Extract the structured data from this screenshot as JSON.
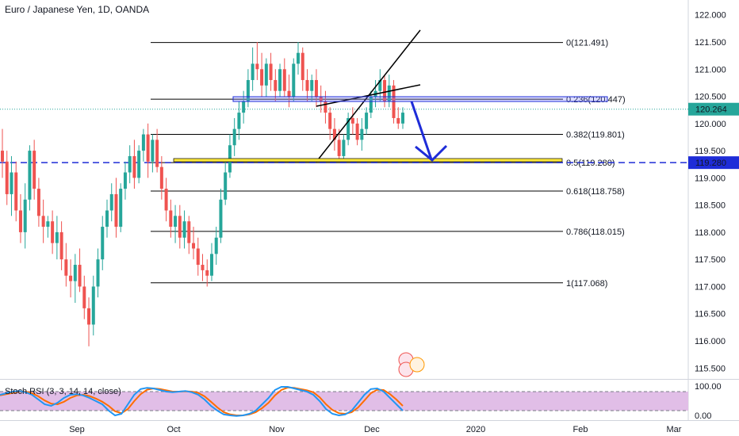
{
  "header": {
    "title": "Euro / Japanese Yen, 1D, OANDA"
  },
  "indicator": {
    "label": "Stoch RSI (3, 3, 14, 14, close)"
  },
  "colors": {
    "up": "#26a69a",
    "down": "#ef5350",
    "fib": "#000000",
    "level_line": "#1e2cd8",
    "current_price": "#26a69a",
    "stoch_k": "#2196f3",
    "stoch_d": "#ff6d00",
    "stoch_band": "#e1bee7"
  },
  "chart_data": {
    "type": "candlestick",
    "symbol": "EUR/JPY",
    "interval": "1D",
    "ylim": [
      115.3,
      122.2
    ],
    "y_ticks": [
      "122.000",
      "121.500",
      "121.000",
      "120.500",
      "120.000",
      "119.500",
      "119.000",
      "118.500",
      "118.000",
      "117.500",
      "117.000",
      "116.500",
      "116.000",
      "115.500"
    ],
    "x_ticks": [
      "Sep",
      "Oct",
      "Nov",
      "Dec",
      "2020",
      "Feb",
      "Mar"
    ],
    "fib_levels": [
      {
        "ratio": "0",
        "price": 121.491,
        "label": "0(121.491)"
      },
      {
        "ratio": "0.236",
        "price": 120.447,
        "label": "0.236(120.447)"
      },
      {
        "ratio": "0.382",
        "price": 119.801,
        "label": "0.382(119.801)"
      },
      {
        "ratio": "0.5",
        "price": 119.28,
        "label": "0.5(119.280)"
      },
      {
        "ratio": "0.618",
        "price": 118.758,
        "label": "0.618(118.758)"
      },
      {
        "ratio": "0.786",
        "price": 118.015,
        "label": "0.786(118.015)"
      },
      {
        "ratio": "1",
        "price": 117.068,
        "label": "1(117.068)"
      }
    ],
    "current_price": {
      "value": 120.264,
      "label": "120.264"
    },
    "horizontal_level": {
      "value": 119.28,
      "label": "119.280"
    },
    "candles": [
      [
        119.5,
        119.9,
        119.0,
        119.3
      ],
      [
        119.3,
        119.5,
        118.5,
        118.7
      ],
      [
        118.7,
        119.4,
        118.3,
        119.1
      ],
      [
        119.1,
        119.3,
        118.2,
        118.4
      ],
      [
        118.4,
        118.7,
        117.8,
        118.0
      ],
      [
        118.0,
        118.9,
        117.7,
        118.6
      ],
      [
        118.6,
        119.6,
        118.4,
        119.5
      ],
      [
        119.5,
        119.7,
        118.6,
        118.8
      ],
      [
        118.8,
        119.0,
        118.1,
        118.3
      ],
      [
        118.3,
        118.6,
        117.8,
        118.1
      ],
      [
        118.1,
        118.3,
        117.9,
        118.2
      ],
      [
        118.2,
        118.4,
        117.6,
        117.8
      ],
      [
        117.8,
        118.3,
        117.5,
        118.0
      ],
      [
        118.0,
        118.2,
        117.3,
        117.5
      ],
      [
        117.5,
        117.8,
        117.0,
        117.2
      ],
      [
        117.2,
        117.5,
        116.8,
        117.1
      ],
      [
        117.1,
        117.6,
        116.7,
        117.4
      ],
      [
        117.4,
        117.7,
        116.9,
        117.0
      ],
      [
        117.0,
        117.2,
        116.4,
        116.6
      ],
      [
        116.6,
        116.8,
        115.9,
        116.3
      ],
      [
        116.3,
        117.2,
        116.1,
        117.0
      ],
      [
        117.0,
        117.7,
        116.8,
        117.5
      ],
      [
        117.5,
        118.3,
        117.3,
        118.1
      ],
      [
        118.1,
        118.6,
        117.9,
        118.4
      ],
      [
        118.4,
        118.9,
        118.2,
        118.7
      ],
      [
        118.7,
        119.0,
        117.9,
        118.1
      ],
      [
        118.1,
        118.9,
        118.0,
        118.8
      ],
      [
        118.8,
        119.3,
        118.6,
        119.1
      ],
      [
        119.1,
        119.6,
        118.9,
        119.4
      ],
      [
        119.4,
        119.7,
        118.8,
        119.0
      ],
      [
        119.0,
        119.6,
        118.9,
        119.5
      ],
      [
        119.5,
        119.9,
        119.3,
        119.8
      ],
      [
        119.8,
        120.0,
        119.0,
        119.3
      ],
      [
        119.3,
        119.8,
        119.1,
        119.7
      ],
      [
        119.7,
        119.9,
        119.1,
        119.2
      ],
      [
        119.2,
        119.4,
        118.6,
        118.8
      ],
      [
        118.8,
        119.0,
        118.2,
        118.4
      ],
      [
        118.4,
        118.6,
        117.9,
        118.1
      ],
      [
        118.1,
        118.5,
        117.8,
        118.3
      ],
      [
        118.3,
        118.5,
        117.7,
        117.9
      ],
      [
        117.9,
        118.4,
        117.7,
        118.2
      ],
      [
        118.2,
        118.3,
        117.6,
        117.8
      ],
      [
        117.8,
        118.1,
        117.5,
        117.7
      ],
      [
        117.7,
        117.9,
        117.2,
        117.4
      ],
      [
        117.4,
        117.6,
        117.1,
        117.3
      ],
      [
        117.3,
        117.5,
        117.0,
        117.2
      ],
      [
        117.2,
        117.8,
        117.1,
        117.6
      ],
      [
        117.6,
        118.1,
        117.4,
        117.9
      ],
      [
        117.9,
        118.8,
        117.8,
        118.6
      ],
      [
        118.6,
        119.3,
        118.5,
        119.1
      ],
      [
        119.1,
        119.8,
        119.0,
        119.6
      ],
      [
        119.6,
        120.1,
        119.4,
        119.9
      ],
      [
        119.9,
        120.4,
        119.7,
        120.2
      ],
      [
        120.2,
        120.6,
        120.0,
        120.4
      ],
      [
        120.4,
        121.0,
        120.3,
        120.8
      ],
      [
        120.8,
        121.4,
        120.6,
        121.1
      ],
      [
        121.1,
        121.5,
        120.8,
        121.0
      ],
      [
        121.0,
        121.3,
        120.5,
        120.7
      ],
      [
        120.7,
        121.2,
        120.5,
        121.1
      ],
      [
        121.1,
        121.3,
        120.6,
        120.8
      ],
      [
        120.8,
        121.0,
        120.4,
        120.6
      ],
      [
        120.6,
        121.1,
        120.5,
        121.0
      ],
      [
        121.0,
        121.2,
        120.5,
        120.6
      ],
      [
        120.6,
        120.9,
        120.3,
        120.5
      ],
      [
        120.5,
        121.2,
        120.4,
        121.1
      ],
      [
        121.1,
        121.5,
        120.9,
        121.3
      ],
      [
        121.3,
        121.4,
        120.6,
        120.8
      ],
      [
        120.8,
        121.0,
        120.4,
        120.6
      ],
      [
        120.6,
        120.9,
        120.4,
        120.8
      ],
      [
        120.8,
        121.0,
        120.3,
        120.5
      ],
      [
        120.5,
        120.7,
        120.2,
        120.4
      ],
      [
        120.4,
        120.6,
        120.0,
        120.2
      ],
      [
        120.2,
        120.3,
        119.7,
        119.9
      ],
      [
        119.9,
        120.1,
        119.5,
        119.7
      ],
      [
        119.7,
        119.9,
        119.3,
        119.4
      ],
      [
        119.4,
        119.8,
        119.3,
        119.7
      ],
      [
        119.7,
        120.2,
        119.6,
        120.1
      ],
      [
        120.1,
        120.3,
        119.8,
        120.0
      ],
      [
        120.0,
        120.1,
        119.6,
        119.7
      ],
      [
        119.7,
        120.1,
        119.5,
        119.9
      ],
      [
        119.9,
        120.3,
        119.8,
        120.2
      ],
      [
        120.2,
        120.6,
        120.1,
        120.5
      ],
      [
        120.5,
        120.8,
        120.3,
        120.6
      ],
      [
        120.6,
        121.0,
        120.4,
        120.8
      ],
      [
        120.8,
        120.9,
        120.3,
        120.4
      ],
      [
        120.4,
        120.9,
        120.3,
        120.7
      ],
      [
        120.7,
        120.8,
        120.0,
        120.1
      ],
      [
        120.1,
        120.3,
        119.9,
        120.0
      ],
      [
        120.0,
        120.3,
        119.9,
        120.2
      ]
    ],
    "stoch_rsi": {
      "bands": [
        80,
        20
      ],
      "axis_labels": [
        "100.00",
        "0.00"
      ],
      "k": [
        70,
        75,
        80,
        82,
        78,
        70,
        55,
        40,
        35,
        45,
        60,
        70,
        72,
        68,
        60,
        50,
        40,
        20,
        5,
        10,
        40,
        70,
        88,
        92,
        90,
        85,
        80,
        78,
        80,
        82,
        78,
        70,
        55,
        35,
        20,
        8,
        5,
        3,
        5,
        10,
        20,
        40,
        60,
        85,
        95,
        95,
        90,
        85,
        80,
        70,
        50,
        25,
        10,
        5,
        8,
        20,
        45,
        70,
        88,
        90,
        80,
        60,
        40,
        20
      ],
      "d": [
        68,
        72,
        76,
        80,
        80,
        75,
        65,
        52,
        42,
        40,
        48,
        60,
        68,
        70,
        66,
        58,
        48,
        35,
        18,
        12,
        25,
        50,
        72,
        86,
        90,
        88,
        84,
        80,
        80,
        81,
        80,
        76,
        65,
        48,
        30,
        15,
        8,
        5,
        5,
        8,
        15,
        28,
        45,
        68,
        85,
        93,
        92,
        88,
        84,
        78,
        62,
        40,
        22,
        12,
        10,
        15,
        30,
        52,
        75,
        86,
        85,
        72,
        55,
        35
      ]
    }
  }
}
